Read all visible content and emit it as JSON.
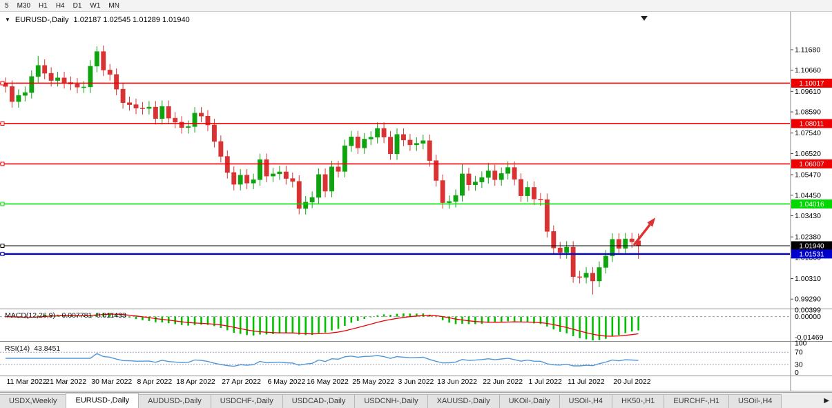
{
  "toolbar": {
    "timeframes": [
      "5",
      "M30",
      "H1",
      "H4",
      "D1",
      "W1",
      "MN"
    ]
  },
  "chart": {
    "title": "EURUSD-,Daily",
    "ohlc": "1.02187  1.02545  1.01289  1.01940"
  },
  "colors": {
    "candle_up": "#0FA30F",
    "candle_down": "#D93232",
    "macd_hist": "#00C000",
    "macd_signal": "#EE0000",
    "rsi_line": "#4F96D8",
    "axis_text": "#000000"
  },
  "hlines": [
    {
      "price": 1.10017,
      "label": "1.10017",
      "color": "#EE0000",
      "width": 1.6
    },
    {
      "price": 1.08011,
      "label": "1.08011",
      "color": "#EE0000",
      "width": 1.6
    },
    {
      "price": 1.06007,
      "label": "1.06007",
      "color": "#EE0000",
      "width": 1.6
    },
    {
      "price": 1.04016,
      "label": "1.04016",
      "color": "#00D800",
      "width": 1.6
    },
    {
      "price": 1.0194,
      "label": "1.01940",
      "color": "#000000",
      "width": 1.0
    },
    {
      "price": 1.01531,
      "label": "1.01531",
      "color": "#0000CC",
      "width": 2.4
    }
  ],
  "macd": {
    "label": "MACD(12,26,9)",
    "values": "-0.007781 -0.011433",
    "max": 0.00399,
    "min": -0.01469,
    "axis": [
      "0.00399",
      "0.00000",
      "-0.01469"
    ]
  },
  "rsi": {
    "label": "RSI(14)",
    "value": "43.8451",
    "axis": [
      100,
      70,
      30,
      0
    ],
    "levels": [
      70,
      30
    ]
  },
  "tabs": [
    {
      "label": "USDX,Weekly",
      "active": false
    },
    {
      "label": "EURUSD-,Daily",
      "active": true
    },
    {
      "label": "AUDUSD-,Daily",
      "active": false
    },
    {
      "label": "USDCHF-,Daily",
      "active": false
    },
    {
      "label": "USDCAD-,Daily",
      "active": false
    },
    {
      "label": "USDCNH-,Daily",
      "active": false
    },
    {
      "label": "XAUUSD-,Daily",
      "active": false
    },
    {
      "label": "UKOil-,Daily",
      "active": false
    },
    {
      "label": "USOil-,H4",
      "active": false
    },
    {
      "label": "HK50-,H1",
      "active": false
    },
    {
      "label": "EURCHF-,H1",
      "active": false
    },
    {
      "label": "USOil-,H4",
      "active": false
    }
  ],
  "tab_scroll_right": "▶",
  "annotation": {
    "type": "trend-arrow",
    "color": "#E03232",
    "from": {
      "index": 96.3,
      "price": 1.0197
    },
    "to": {
      "index": 99.6,
      "price": 1.0334
    }
  },
  "chart_data": {
    "type": "candlestick",
    "symbol": "EURUSD-",
    "timeframe": "Daily",
    "y_axis": {
      "ticks": [
        "1.11680",
        "1.10660",
        "1.09610",
        "1.08590",
        "1.07540",
        "1.06520",
        "1.05470",
        "1.04450",
        "1.03430",
        "1.02380",
        "1.01360",
        "1.00310",
        "0.99290"
      ],
      "min": 0.989,
      "max": 1.1345
    },
    "date_labels": [
      {
        "i": 1,
        "t": "11 Mar 2022"
      },
      {
        "i": 7,
        "t": "21 Mar 2022"
      },
      {
        "i": 14,
        "t": "30 Mar 2022"
      },
      {
        "i": 21,
        "t": "8 Apr 2022"
      },
      {
        "i": 27,
        "t": "18 Apr 2022"
      },
      {
        "i": 34,
        "t": "27 Apr 2022"
      },
      {
        "i": 41,
        "t": "6 May 2022"
      },
      {
        "i": 47,
        "t": "16 May 2022"
      },
      {
        "i": 54,
        "t": "25 May 2022"
      },
      {
        "i": 61,
        "t": "3 Jun 2022"
      },
      {
        "i": 67,
        "t": "13 Jun 2022"
      },
      {
        "i": 74,
        "t": "22 Jun 2022"
      },
      {
        "i": 81,
        "t": "1 Jul 2022"
      },
      {
        "i": 87,
        "t": "11 Jul 2022"
      },
      {
        "i": 94,
        "t": "20 Jul 2022"
      }
    ],
    "candles": [
      [
        1.1,
        1.103,
        1.0955,
        1.0985
      ],
      [
        1.0985,
        1.1015,
        1.088,
        1.091
      ],
      [
        1.091,
        1.0971,
        1.088,
        1.0941
      ],
      [
        1.0941,
        1.0985,
        1.0911,
        1.0955
      ],
      [
        1.0955,
        1.1065,
        1.0925,
        1.1035
      ],
      [
        1.1035,
        1.1137,
        1.1005,
        1.109
      ],
      [
        1.109,
        1.112,
        1.1021,
        1.1051
      ],
      [
        1.1051,
        1.1081,
        1.0985,
        1.1015
      ],
      [
        1.1015,
        1.1058,
        1.0985,
        1.1028
      ],
      [
        1.1028,
        1.1058,
        1.0975,
        1.1005
      ],
      [
        1.1005,
        1.1035,
        1.0967,
        1.0997
      ],
      [
        1.0997,
        1.1027,
        1.0952,
        1.0982
      ],
      [
        1.0982,
        1.1012,
        1.0953,
        1.0983
      ],
      [
        1.0983,
        1.1116,
        1.0953,
        1.1086
      ],
      [
        1.1086,
        1.1185,
        1.1056,
        1.1159
      ],
      [
        1.1159,
        1.1189,
        1.1037,
        1.1067
      ],
      [
        1.1067,
        1.1097,
        1.1015,
        1.1045
      ],
      [
        1.1045,
        1.1075,
        1.0942,
        1.0972
      ],
      [
        1.0972,
        1.1002,
        1.0875,
        1.0905
      ],
      [
        1.0905,
        1.0935,
        1.0865,
        1.0895
      ],
      [
        1.0895,
        1.0925,
        1.0848,
        1.0878
      ],
      [
        1.0878,
        1.0908,
        1.0846,
        1.0876
      ],
      [
        1.0876,
        1.0913,
        1.0846,
        1.0883
      ],
      [
        1.0883,
        1.0913,
        1.0796,
        1.0826
      ],
      [
        1.0826,
        1.0916,
        1.0796,
        1.0886
      ],
      [
        1.0886,
        1.0916,
        1.0798,
        1.0828
      ],
      [
        1.0828,
        1.0858,
        1.0778,
        1.0808
      ],
      [
        1.0808,
        1.0838,
        1.0751,
        1.0781
      ],
      [
        1.0781,
        1.0816,
        1.0751,
        1.0786
      ],
      [
        1.0786,
        1.0883,
        1.0756,
        1.0853
      ],
      [
        1.0853,
        1.0883,
        1.0808,
        1.0838
      ],
      [
        1.0838,
        1.0868,
        1.0764,
        1.0794
      ],
      [
        1.0794,
        1.0824,
        1.0682,
        1.0712
      ],
      [
        1.0712,
        1.0742,
        1.0608,
        1.0638
      ],
      [
        1.0638,
        1.0668,
        1.0528,
        1.0558
      ],
      [
        1.0558,
        1.0588,
        1.0469,
        1.0499
      ],
      [
        1.0499,
        1.0575,
        1.0469,
        1.0545
      ],
      [
        1.0545,
        1.0575,
        1.0475,
        1.0505
      ],
      [
        1.0505,
        1.0552,
        1.0475,
        1.0522
      ],
      [
        1.0522,
        1.0652,
        1.0492,
        1.0622
      ],
      [
        1.0622,
        1.0652,
        1.051,
        1.054
      ],
      [
        1.054,
        1.0581,
        1.051,
        1.0551
      ],
      [
        1.0551,
        1.0591,
        1.0521,
        1.0561
      ],
      [
        1.0561,
        1.0591,
        1.0498,
        1.0528
      ],
      [
        1.0528,
        1.0558,
        1.0484,
        1.0514
      ],
      [
        1.0514,
        1.0544,
        1.035,
        1.0379
      ],
      [
        1.0379,
        1.0441,
        1.0349,
        1.0411
      ],
      [
        1.0411,
        1.0464,
        1.0381,
        1.0434
      ],
      [
        1.0434,
        1.0578,
        1.0404,
        1.0548
      ],
      [
        1.0548,
        1.0578,
        1.0435,
        1.0465
      ],
      [
        1.0465,
        1.0616,
        1.0435,
        1.0586
      ],
      [
        1.0586,
        1.0616,
        1.0533,
        1.0563
      ],
      [
        1.0563,
        1.0721,
        1.0533,
        1.0691
      ],
      [
        1.0691,
        1.0765,
        1.0661,
        1.0735
      ],
      [
        1.0735,
        1.0765,
        1.065,
        1.068
      ],
      [
        1.068,
        1.0754,
        1.065,
        1.0724
      ],
      [
        1.0724,
        1.0763,
        1.0694,
        1.0733
      ],
      [
        1.0733,
        1.0807,
        1.0703,
        1.0777
      ],
      [
        1.0777,
        1.0807,
        1.0704,
        1.0734
      ],
      [
        1.0734,
        1.0764,
        1.0621,
        1.0651
      ],
      [
        1.0651,
        1.0777,
        1.0621,
        1.0747
      ],
      [
        1.0747,
        1.0777,
        1.0689,
        1.0719
      ],
      [
        1.0719,
        1.0749,
        1.0665,
        1.0695
      ],
      [
        1.0695,
        1.0733,
        1.0665,
        1.0703
      ],
      [
        1.0703,
        1.0746,
        1.0673,
        1.0716
      ],
      [
        1.0716,
        1.0746,
        1.0587,
        1.0617
      ],
      [
        1.0617,
        1.0647,
        1.0488,
        1.0518
      ],
      [
        1.0518,
        1.0548,
        1.0378,
        1.0408
      ],
      [
        1.0408,
        1.0444,
        1.0378,
        1.0414
      ],
      [
        1.0414,
        1.0474,
        1.0384,
        1.0444
      ],
      [
        1.0444,
        1.0601,
        1.0414,
        1.0551
      ],
      [
        1.0551,
        1.0581,
        1.0467,
        1.0497
      ],
      [
        1.0497,
        1.0541,
        1.0467,
        1.0511
      ],
      [
        1.0511,
        1.0563,
        1.0481,
        1.0533
      ],
      [
        1.0533,
        1.0606,
        1.0503,
        1.0566
      ],
      [
        1.0566,
        1.0596,
        1.0492,
        1.0522
      ],
      [
        1.0522,
        1.0583,
        1.0492,
        1.0553
      ],
      [
        1.0553,
        1.0613,
        1.0523,
        1.0583
      ],
      [
        1.0583,
        1.0613,
        1.0494,
        1.0524
      ],
      [
        1.0524,
        1.0554,
        1.0412,
        1.0442
      ],
      [
        1.0442,
        1.0514,
        1.0412,
        1.0484
      ],
      [
        1.0484,
        1.0514,
        1.0396,
        1.0426
      ],
      [
        1.0426,
        1.0456,
        1.0393,
        1.0423
      ],
      [
        1.0423,
        1.0453,
        1.0235,
        1.0265
      ],
      [
        1.0265,
        1.0295,
        1.0153,
        1.0183
      ],
      [
        1.0183,
        1.0213,
        1.013,
        1.016
      ],
      [
        1.016,
        1.0217,
        1.013,
        1.0187
      ],
      [
        1.0187,
        1.0217,
        1.001,
        1.004
      ],
      [
        1.004,
        1.007,
        1.0007,
        1.0037
      ],
      [
        1.0037,
        1.0088,
        1.0007,
        1.0058
      ],
      [
        1.0058,
        1.0088,
        0.9952,
        1.0019
      ],
      [
        1.0019,
        1.0116,
        0.9989,
        1.0086
      ],
      [
        1.0086,
        1.0173,
        1.0056,
        1.0143
      ],
      [
        1.0143,
        1.0256,
        1.0113,
        1.0226
      ],
      [
        1.0226,
        1.0256,
        1.0151,
        1.0181
      ],
      [
        1.0181,
        1.0258,
        1.0151,
        1.0228
      ],
      [
        1.0228,
        1.0258,
        1.0183,
        1.0213
      ],
      [
        1.02187,
        1.02545,
        1.01289,
        1.0194
      ]
    ]
  }
}
